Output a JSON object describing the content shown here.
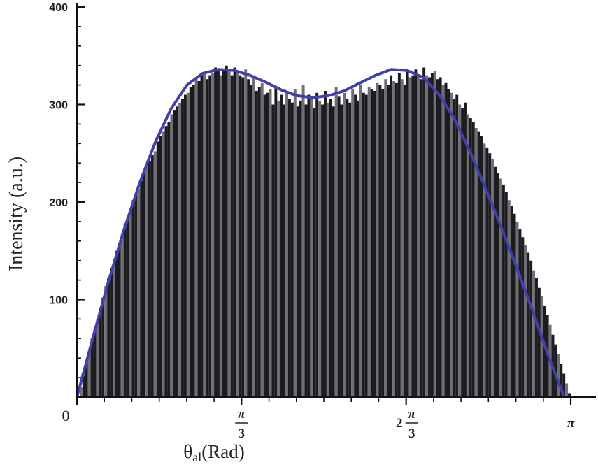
{
  "chart_data": {
    "type": "bar",
    "title": "",
    "xlabel": "θ",
    "xlabel_sub": "al",
    "xlabel_unit": "(Rad)",
    "ylabel": "Intensity (a.u.)",
    "xlim": [
      0,
      3.1416
    ],
    "ylim": [
      0,
      400
    ],
    "y_ticks": [
      {
        "value": 100,
        "label": "100"
      },
      {
        "value": 200,
        "label": "200"
      },
      {
        "value": 300,
        "label": "300"
      },
      {
        "value": 400,
        "label": "400"
      }
    ],
    "x_ticks": [
      {
        "value": 0,
        "label": "0"
      },
      {
        "value": 1.0472,
        "label": "π/3",
        "prefix": "",
        "num": "π",
        "den": "3"
      },
      {
        "value": 2.0944,
        "label": "2π/3",
        "prefix": "2",
        "num": "π",
        "den": "3"
      },
      {
        "value": 3.1416,
        "label": "π",
        "prefix": "",
        "num": "π",
        "den": ""
      }
    ],
    "histogram": {
      "x_start": 0,
      "x_end": 3.1416,
      "bin_count": 180,
      "color": "#1c1c20",
      "highlight_color": "#6e6e74",
      "values": [
        0,
        10,
        22,
        36,
        48,
        60,
        70,
        80,
        92,
        102,
        114,
        122,
        132,
        142,
        150,
        158,
        168,
        178,
        184,
        192,
        202,
        208,
        214,
        222,
        230,
        236,
        242,
        248,
        252,
        262,
        268,
        272,
        278,
        282,
        290,
        294,
        298,
        302,
        306,
        310,
        312,
        318,
        320,
        326,
        324,
        330,
        332,
        326,
        330,
        332,
        338,
        334,
        330,
        336,
        340,
        334,
        330,
        338,
        332,
        330,
        328,
        336,
        326,
        320,
        330,
        314,
        318,
        322,
        310,
        312,
        316,
        300,
        318,
        304,
        310,
        300,
        314,
        306,
        302,
        316,
        298,
        304,
        320,
        300,
        310,
        306,
        296,
        312,
        304,
        300,
        314,
        302,
        306,
        298,
        318,
        308,
        300,
        312,
        306,
        302,
        316,
        310,
        304,
        320,
        312,
        310,
        318,
        316,
        314,
        322,
        320,
        316,
        326,
        320,
        330,
        324,
        322,
        332,
        326,
        320,
        334,
        328,
        330,
        336,
        330,
        326,
        338,
        330,
        328,
        332,
        334,
        326,
        328,
        320,
        322,
        316,
        312,
        306,
        310,
        300,
        296,
        302,
        290,
        286,
        282,
        276,
        272,
        268,
        260,
        256,
        250,
        244,
        236,
        230,
        224,
        218,
        210,
        202,
        196,
        188,
        180,
        172,
        164,
        156,
        148,
        140,
        130,
        122,
        112,
        104,
        94,
        84,
        74,
        64,
        54,
        44,
        34,
        24,
        14,
        4
      ]
    },
    "series": [
      {
        "name": "",
        "color": "#4040a8",
        "x": [
          0.0,
          0.1,
          0.2,
          0.3,
          0.4,
          0.5,
          0.6,
          0.7,
          0.8,
          0.9,
          1.0,
          1.1,
          1.2,
          1.3,
          1.4,
          1.5,
          1.6,
          1.7,
          1.8,
          1.9,
          2.0,
          2.1,
          2.2,
          2.3,
          2.4,
          2.5,
          2.6,
          2.7,
          2.8,
          2.9,
          3.0,
          3.1
        ],
        "y": [
          0,
          60,
          118,
          172,
          220,
          262,
          296,
          320,
          332,
          336,
          335,
          330,
          323,
          315,
          309,
          307,
          309,
          314,
          322,
          330,
          336,
          335,
          328,
          311,
          286,
          252,
          214,
          174,
          132,
          88,
          42,
          0
        ]
      }
    ],
    "grid": false,
    "legend": "none"
  }
}
